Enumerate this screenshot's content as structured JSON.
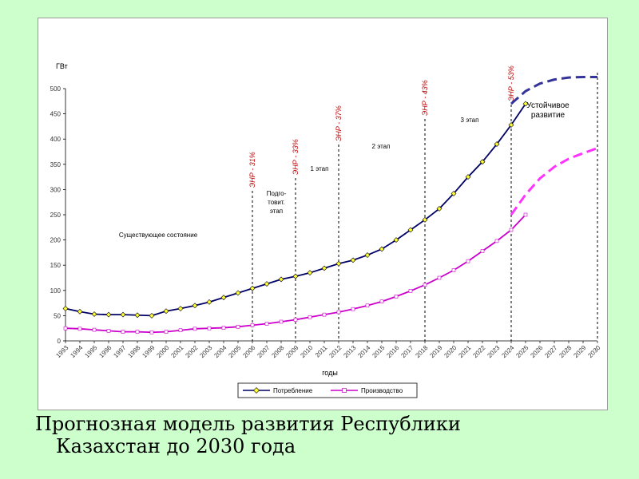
{
  "slide": {
    "title": "Прогнозная модель развития Республики Казахстан до 2030 года"
  },
  "chart_data": {
    "type": "line",
    "ylabel": "ГВт",
    "xlabel": "годы",
    "ylim": [
      0,
      500
    ],
    "yticks": [
      "0",
      "50",
      "100",
      "150",
      "200",
      "250",
      "300",
      "350",
      "400",
      "450",
      "500"
    ],
    "x": [
      "1993",
      "1994",
      "1995",
      "1996",
      "1997",
      "1998",
      "1999",
      "2000",
      "2001",
      "2002",
      "2003",
      "2004",
      "2005",
      "2006",
      "2007",
      "2008",
      "2009",
      "2010",
      "2011",
      "2012",
      "2013",
      "2014",
      "2015",
      "2016",
      "2017",
      "2018",
      "2019",
      "2020",
      "2021",
      "2022",
      "2023",
      "2024",
      "2025",
      "2026",
      "2027",
      "2028",
      "2029",
      "2030"
    ],
    "grid": false,
    "legend_position": "bottom",
    "series": [
      {
        "name": "Потребление",
        "color": "#000066",
        "forecast_color": "#333399",
        "marker": "diamond-yellow",
        "values": [
          64,
          58,
          53,
          52,
          52,
          51,
          50,
          59,
          64,
          70,
          77,
          86,
          95,
          104,
          113,
          122,
          128,
          135,
          144,
          153,
          160,
          170,
          182,
          200,
          220,
          240,
          262,
          292,
          325,
          355,
          390,
          428,
          470,
          null,
          null,
          null,
          null,
          null
        ],
        "forecast": [
          470,
          495,
          510,
          518,
          522,
          523,
          523
        ]
      },
      {
        "name": "Производство",
        "color": "#cc00cc",
        "forecast_color": "#ff33ff",
        "marker": "square-white",
        "values": [
          25,
          24,
          22,
          20,
          18,
          18,
          17,
          18,
          21,
          24,
          25,
          26,
          28,
          31,
          34,
          38,
          42,
          47,
          52,
          57,
          63,
          70,
          78,
          88,
          99,
          111,
          125,
          140,
          158,
          178,
          198,
          220,
          250,
          null,
          null,
          null,
          null,
          null
        ],
        "forecast": [
          250,
          290,
          322,
          345,
          361,
          372,
          382
        ]
      }
    ],
    "milestones": [
      {
        "year": "2006",
        "label": "ЭНР - 31%"
      },
      {
        "year": "2009",
        "label": "ЭНР - 33%"
      },
      {
        "year": "2012",
        "label": "ЭНР - 37%"
      },
      {
        "year": "2018",
        "label": "ЭНР - 43%"
      },
      {
        "year": "2024",
        "label": "ЭНР - 53%"
      },
      {
        "year": "2030",
        "label": ""
      }
    ],
    "phases": [
      {
        "label": "Существующее состояние",
        "lines": [
          "Существующее состояние"
        ]
      },
      {
        "label": "Подготовит. этап",
        "lines": [
          "Подго-",
          "товит.",
          "этап"
        ]
      },
      {
        "label": "1 этап",
        "lines": [
          "1 этап"
        ]
      },
      {
        "label": "2 этап",
        "lines": [
          "2 этап"
        ]
      },
      {
        "label": "3 этап",
        "lines": [
          "3 этап"
        ]
      },
      {
        "label": "Устойчивое развитие",
        "lines": [
          "Устойчивое",
          "развитие"
        ]
      }
    ]
  }
}
